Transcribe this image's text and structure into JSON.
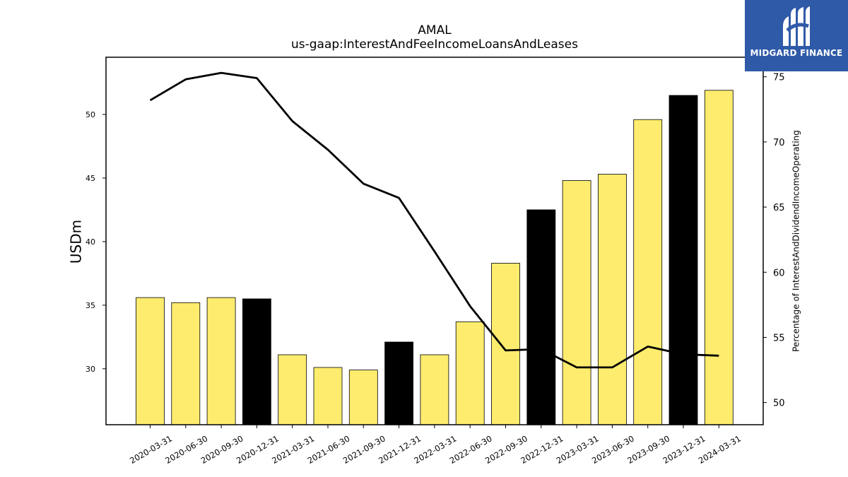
{
  "title": "AMAL",
  "subtitle": "us-gaap:InterestAndFeeIncomeLoansAndLeases",
  "logo": {
    "text": "MIDGARD FINANCE"
  },
  "colors": {
    "bar_default": "#feec6e",
    "bar_highlight": "#000000",
    "line": "#000000",
    "logo_bg": "#2f5aa8"
  },
  "chart_data": {
    "type": "bar",
    "categories": [
      "2020-03-31",
      "2020-06-30",
      "2020-09-30",
      "2020-12-31",
      "2021-03-31",
      "2021-06-30",
      "2021-09-30",
      "2021-12-31",
      "2022-03-31",
      "2022-06-30",
      "2022-09-30",
      "2022-12-31",
      "2023-03-31",
      "2023-06-30",
      "2023-09-30",
      "2023-12-31",
      "2024-03-31"
    ],
    "values": [
      35.6,
      35.2,
      35.6,
      35.5,
      31.1,
      30.1,
      29.9,
      32.1,
      31.1,
      33.7,
      38.3,
      42.5,
      44.8,
      45.3,
      49.6,
      51.5,
      51.9
    ],
    "highlighted": [
      "2020-12-31",
      "2021-12-31",
      "2022-12-31",
      "2023-12-31"
    ],
    "ylabel": "USDm",
    "ylim": [
      25.6,
      54.5
    ],
    "yticks": [
      30,
      35,
      40,
      45,
      50
    ],
    "secondary": {
      "type": "line",
      "ylabel": "Percentage of InterestAndDividendIncomeOperating",
      "values": [
        73.2,
        74.8,
        75.3,
        74.9,
        71.6,
        69.4,
        66.8,
        65.7,
        61.6,
        57.4,
        54.0,
        54.1,
        52.7,
        52.7,
        54.3,
        53.7,
        53.6
      ],
      "ylim": [
        48.3,
        76.5
      ],
      "yticks": [
        50,
        55,
        60,
        65,
        70,
        75
      ]
    },
    "grid": false,
    "legend": "none"
  }
}
